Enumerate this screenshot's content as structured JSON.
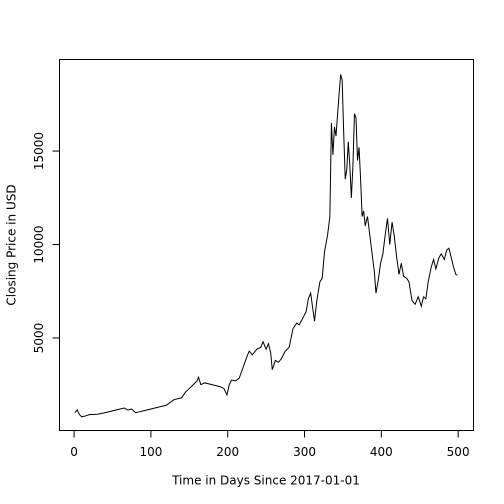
{
  "chart_data": {
    "type": "line",
    "xlabel": "Time in Days Since 2017-01-01",
    "ylabel": "Closing Price in USD",
    "xlim": [
      -19,
      520
    ],
    "ylim": [
      50,
      19900
    ],
    "xticks": [
      0,
      100,
      200,
      300,
      400,
      500
    ],
    "yticks": [
      5000,
      10000,
      15000
    ],
    "color": "#000000",
    "x": [
      1,
      4,
      7,
      10,
      15,
      20,
      30,
      40,
      50,
      60,
      65,
      70,
      75,
      80,
      85,
      90,
      100,
      110,
      120,
      130,
      140,
      145,
      150,
      155,
      160,
      162,
      165,
      170,
      180,
      190,
      195,
      199,
      202,
      205,
      210,
      215,
      218,
      225,
      228,
      232,
      238,
      243,
      246,
      250,
      253,
      256,
      258,
      262,
      266,
      270,
      275,
      280,
      285,
      290,
      293,
      297,
      302,
      305,
      308,
      311,
      313,
      316,
      320,
      323,
      326,
      330,
      333,
      335,
      337,
      339,
      341,
      344,
      347,
      349,
      351,
      353,
      355,
      357,
      359,
      361,
      363,
      365,
      367,
      369,
      371,
      373,
      375,
      377,
      379,
      382,
      385,
      388,
      391,
      393,
      396,
      399,
      402,
      405,
      408,
      411,
      414,
      417,
      420,
      423,
      426,
      429,
      433,
      436,
      440,
      444,
      448,
      452,
      455,
      458,
      461,
      465,
      468,
      471,
      475,
      478,
      482,
      485,
      488,
      491,
      494,
      497,
      499
    ],
    "values": [
      1000,
      1150,
      900,
      780,
      830,
      900,
      920,
      1000,
      1100,
      1200,
      1250,
      1150,
      1200,
      1000,
      1050,
      1100,
      1200,
      1300,
      1400,
      1700,
      1800,
      2100,
      2300,
      2500,
      2700,
      2900,
      2500,
      2600,
      2500,
      2400,
      2300,
      1950,
      2500,
      2750,
      2700,
      2850,
      3200,
      4000,
      4300,
      4100,
      4400,
      4500,
      4800,
      4400,
      4700,
      4200,
      3300,
      3800,
      3700,
      3900,
      4300,
      4500,
      5500,
      5800,
      5700,
      6000,
      6400,
      7100,
      7400,
      6500,
      5900,
      7000,
      8000,
      8200,
      9600,
      10500,
      11500,
      16500,
      14800,
      16300,
      15800,
      17500,
      19100,
      18800,
      16000,
      13500,
      14000,
      15500,
      14200,
      12500,
      14200,
      17000,
      16800,
      14500,
      15200,
      13500,
      11500,
      11800,
      11000,
      11500,
      10500,
      9500,
      8500,
      7400,
      8100,
      9000,
      9500,
      10500,
      11400,
      10000,
      11200,
      10400,
      9300,
      8400,
      9000,
      8300,
      8200,
      8000,
      7000,
      6800,
      7200,
      6700,
      7200,
      7100,
      8000,
      8800,
      9200,
      8700,
      9300,
      9500,
      9200,
      9700,
      9800,
      9300,
      8800,
      8400,
      8350
    ]
  }
}
